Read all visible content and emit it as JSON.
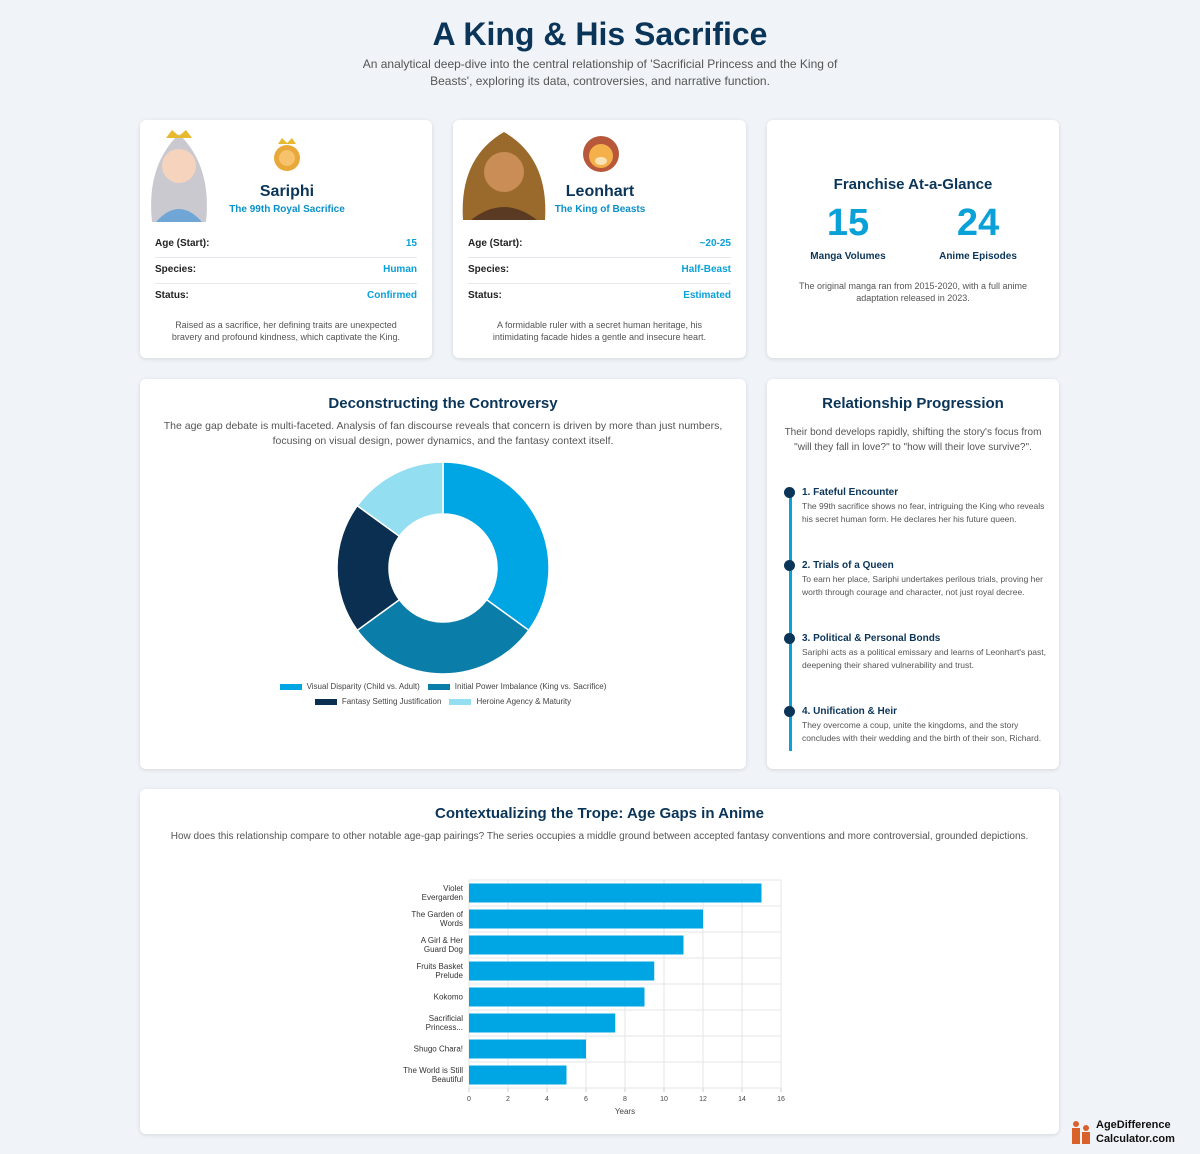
{
  "header": {
    "title": "A King & His Sacrifice",
    "subtitle": "An analytical deep-dive into the central relationship of 'Sacrificial Princess and the King of Beasts', exploring its data, controversies, and narrative function."
  },
  "profiles": [
    {
      "name": "Sariphi",
      "role": "The 99th Royal Sacrifice",
      "rows": [
        {
          "label": "Age (Start):",
          "value": "15"
        },
        {
          "label": "Species:",
          "value": "Human"
        },
        {
          "label": "Status:",
          "value": "Confirmed"
        }
      ],
      "description": "Raised as a sacrifice, her defining traits are unexpected bravery and profound kindness, which captivate the King."
    },
    {
      "name": "Leonhart",
      "role": "The King of Beasts",
      "rows": [
        {
          "label": "Age (Start):",
          "value": "~20-25"
        },
        {
          "label": "Species:",
          "value": "Half-Beast"
        },
        {
          "label": "Status:",
          "value": "Estimated"
        }
      ],
      "description": "A formidable ruler with a secret human heritage, his intimidating facade hides a gentle and insecure heart."
    }
  ],
  "franchise": {
    "title": "Franchise At-a-Glance",
    "stats": [
      {
        "value": 15,
        "label": "Manga Volumes"
      },
      {
        "value": 24,
        "label": "Anime Episodes"
      }
    ],
    "note": "The original manga ran from 2015-2020, with a full anime adaptation released in 2023."
  },
  "controversy": {
    "title": "Deconstructing the Controversy",
    "description": "The age gap debate is multi-faceted. Analysis of fan discourse reveals that concern is driven by more than just numbers, focusing on visual design, power dynamics, and the fantasy context itself."
  },
  "progression": {
    "title": "Relationship Progression",
    "description": "Their bond develops rapidly, shifting the story's focus from \"will they fall in love?\" to \"how will their love survive?\".",
    "steps": [
      {
        "title": "1. Fateful Encounter",
        "text": "The 99th sacrifice shows no fear, intriguing the King who reveals his secret human form. He declares her his future queen."
      },
      {
        "title": "2. Trials of a Queen",
        "text": "To earn her place, Sariphi undertakes perilous trials, proving her worth through courage and character, not just royal decree."
      },
      {
        "title": "3. Political & Personal Bonds",
        "text": "Sariphi acts as a political emissary and learns of Leonhart's past, deepening their shared vulnerability and trust."
      },
      {
        "title": "4. Unification & Heir",
        "text": "They overcome a coup, unite the kingdoms, and the story concludes with their wedding and the birth of their son, Richard."
      }
    ]
  },
  "trope": {
    "title": "Contextualizing the Trope: Age Gaps in Anime",
    "description": "How does this relationship compare to other notable age-gap pairings? The series occupies a middle ground between accepted fantasy conventions and more controversial, grounded depictions."
  },
  "chart_data": [
    {
      "type": "donut",
      "categories": [
        "Visual Disparity (Child vs. Adult)",
        "Initial Power Imbalance (King vs. Sacrifice)",
        "Fantasy Setting Justification",
        "Heroine Agency & Maturity"
      ],
      "values": [
        35,
        30,
        20,
        15
      ],
      "colors": [
        "#00a5e3",
        "#0a7ea8",
        "#0b2f50",
        "#93def0"
      ]
    },
    {
      "type": "bar",
      "orientation": "horizontal",
      "categories": [
        "Violet Evergarden",
        "The Garden of Words",
        "A Girl & Her Guard Dog",
        "Fruits Basket Prelude",
        "Kokomo",
        "Sacrificial Princess...",
        "Shugo Chara!",
        "The World is Still Beautiful"
      ],
      "values": [
        15,
        12,
        11,
        9.5,
        9,
        7.5,
        6,
        5
      ],
      "color": "#00a5e3",
      "xlim": [
        0,
        16
      ],
      "xticks": [
        0,
        2,
        4,
        6,
        8,
        10,
        12,
        14,
        16
      ],
      "xlabel": "Years",
      "grid": true
    }
  ],
  "watermark": [
    "AgeDifference",
    "Calculator.com"
  ]
}
